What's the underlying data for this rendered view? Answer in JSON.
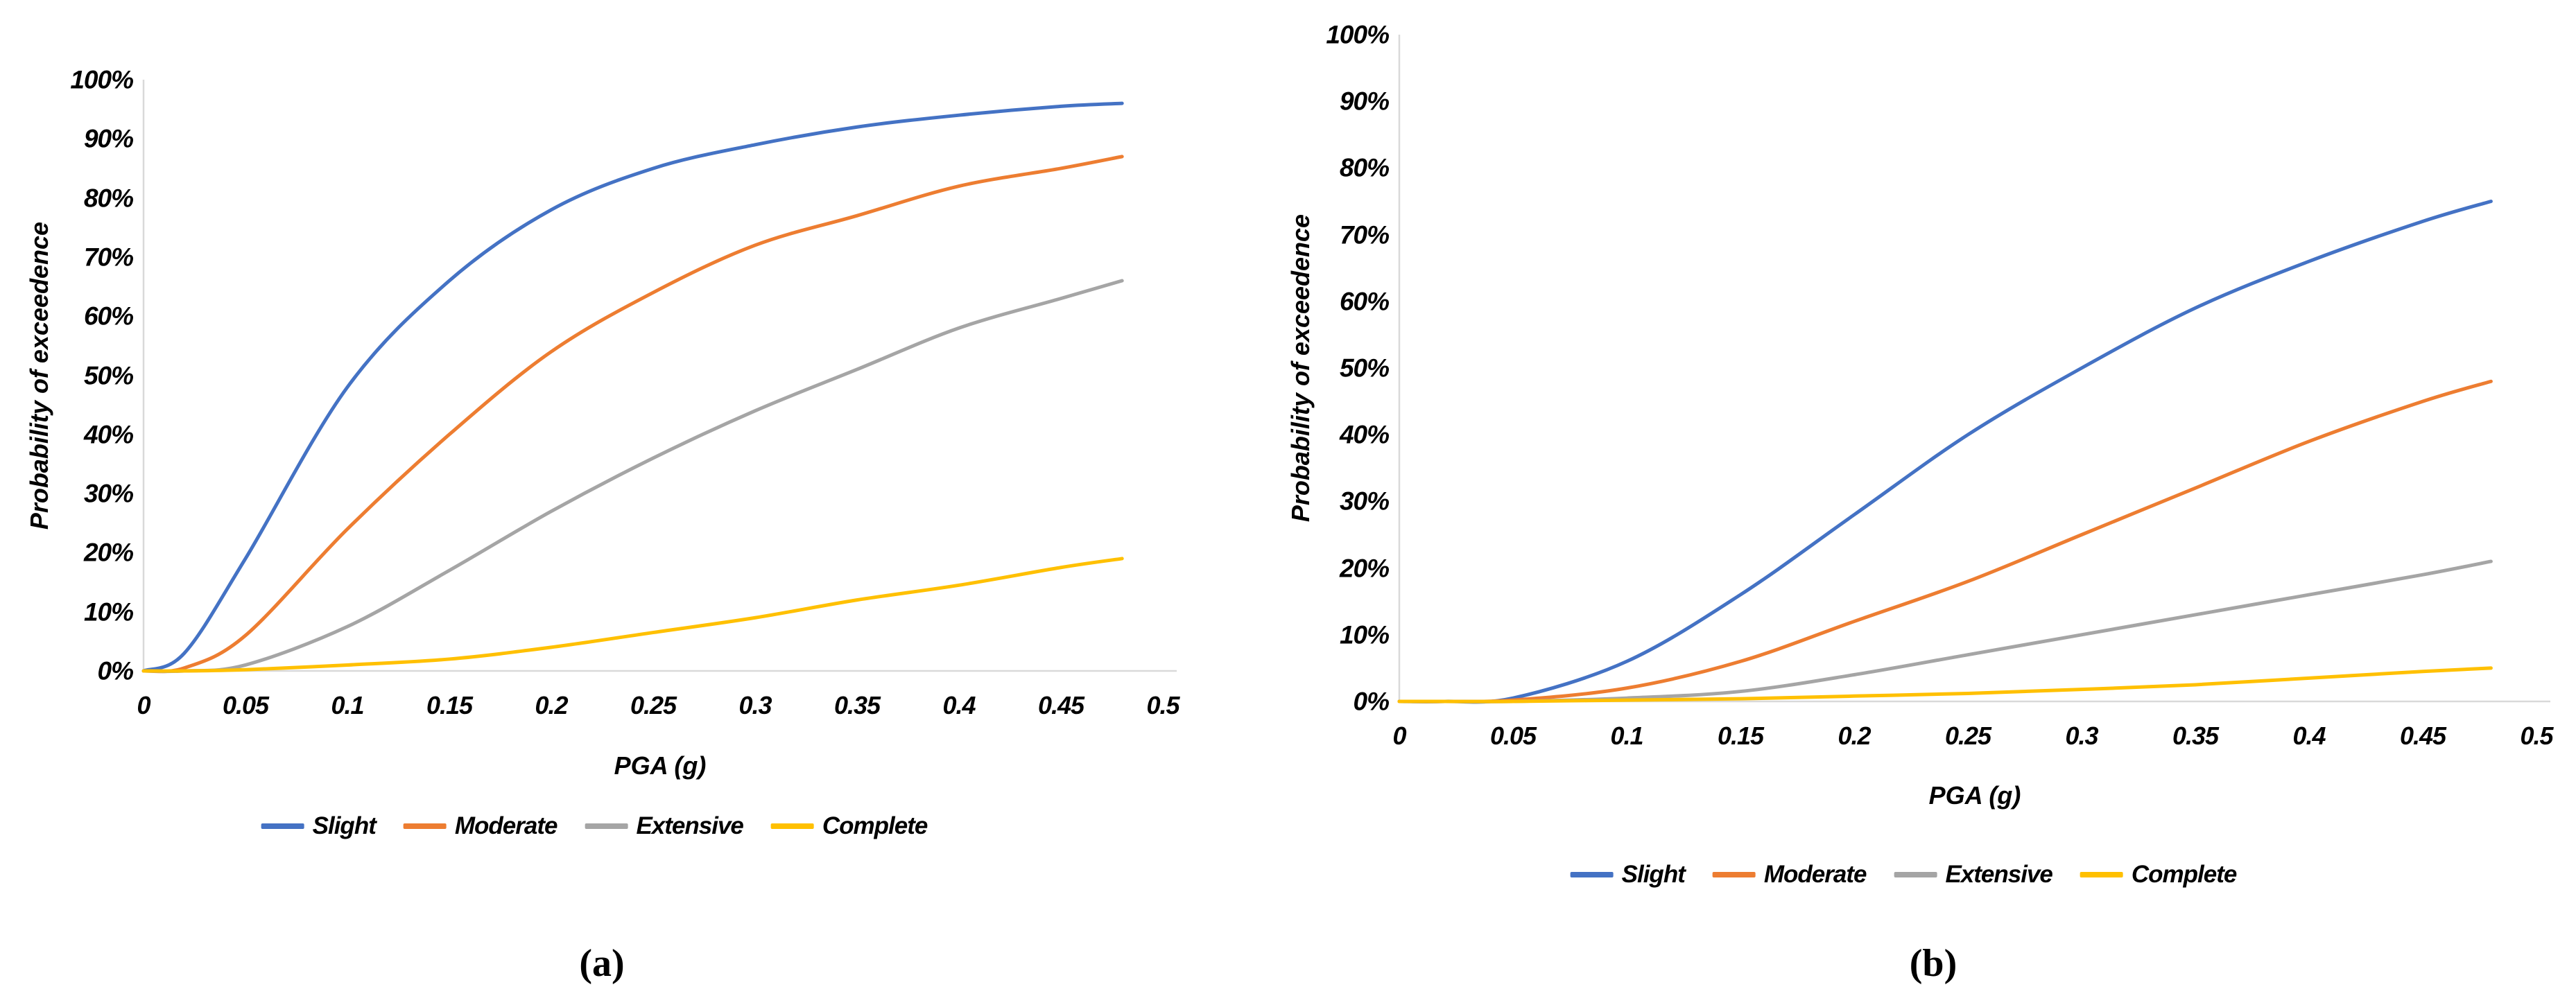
{
  "figure": {
    "background_color": "#ffffff",
    "axis_line_color": "#d9d9d9",
    "text_color": "#000000"
  },
  "chart_data": [
    {
      "type": "line",
      "panel": "a",
      "caption": "(a)",
      "title": "",
      "xlabel": "PGA (g)",
      "ylabel": "Probability of exceedence",
      "xlim": [
        0,
        0.5
      ],
      "ylim_pct": [
        0,
        100
      ],
      "grid": false,
      "legend_position": "bottom",
      "x_tick_labels": [
        "0",
        "0.05",
        "0.1",
        "0.15",
        "0.2",
        "0.25",
        "0.3",
        "0.35",
        "0.4",
        "0.45",
        "0.5"
      ],
      "y_tick_labels": [
        "0%",
        "10%",
        "20%",
        "30%",
        "40%",
        "50%",
        "60%",
        "70%",
        "80%",
        "90%",
        "100%"
      ],
      "x": [
        0,
        0.02,
        0.05,
        0.1,
        0.15,
        0.2,
        0.25,
        0.3,
        0.35,
        0.4,
        0.45,
        0.48
      ],
      "series": [
        {
          "name": "Slight",
          "color": "#4472C4",
          "values_pct": [
            0,
            3,
            19,
            48,
            66,
            78,
            85,
            89,
            92,
            94,
            95.5,
            96
          ]
        },
        {
          "name": "Moderate",
          "color": "#ED7D31",
          "values_pct": [
            0,
            0.5,
            6,
            24,
            40,
            54,
            64,
            72,
            77,
            82,
            85,
            87
          ]
        },
        {
          "name": "Extensive",
          "color": "#A5A5A5",
          "values_pct": [
            0,
            0,
            1,
            7.5,
            17,
            27,
            36,
            44,
            51,
            58,
            63,
            66
          ]
        },
        {
          "name": "Complete",
          "color": "#FFC000",
          "values_pct": [
            0,
            0,
            0.2,
            1,
            2,
            4,
            6.5,
            9,
            12,
            14.5,
            17.5,
            19
          ]
        }
      ]
    },
    {
      "type": "line",
      "panel": "b",
      "caption": "(b)",
      "title": "",
      "xlabel": "PGA (g)",
      "ylabel": "Probability of exceedence",
      "xlim": [
        0,
        0.5
      ],
      "ylim_pct": [
        0,
        100
      ],
      "grid": false,
      "legend_position": "bottom",
      "x_tick_labels": [
        "0",
        "0.05",
        "0.1",
        "0.15",
        "0.2",
        "0.25",
        "0.3",
        "0.35",
        "0.4",
        "0.45",
        "0.5"
      ],
      "y_tick_labels": [
        "0%",
        "10%",
        "20%",
        "30%",
        "40%",
        "50%",
        "60%",
        "70%",
        "80%",
        "90%",
        "100%"
      ],
      "x": [
        0,
        0.02,
        0.05,
        0.1,
        0.15,
        0.2,
        0.25,
        0.3,
        0.35,
        0.4,
        0.45,
        0.48
      ],
      "series": [
        {
          "name": "Slight",
          "color": "#4472C4",
          "values_pct": [
            0,
            0,
            0.5,
            6,
            16,
            28,
            40,
            50,
            59,
            66,
            72,
            75
          ]
        },
        {
          "name": "Moderate",
          "color": "#ED7D31",
          "values_pct": [
            0,
            0,
            0.2,
            2,
            6,
            12,
            18,
            25,
            32,
            39,
            45,
            48
          ]
        },
        {
          "name": "Extensive",
          "color": "#A5A5A5",
          "values_pct": [
            0,
            0,
            0,
            0.5,
            1.5,
            4,
            7,
            10,
            13,
            16,
            19,
            21
          ]
        },
        {
          "name": "Complete",
          "color": "#FFC000",
          "values_pct": [
            0,
            0,
            0,
            0.2,
            0.4,
            0.8,
            1.2,
            1.8,
            2.5,
            3.5,
            4.5,
            5
          ]
        }
      ]
    }
  ]
}
